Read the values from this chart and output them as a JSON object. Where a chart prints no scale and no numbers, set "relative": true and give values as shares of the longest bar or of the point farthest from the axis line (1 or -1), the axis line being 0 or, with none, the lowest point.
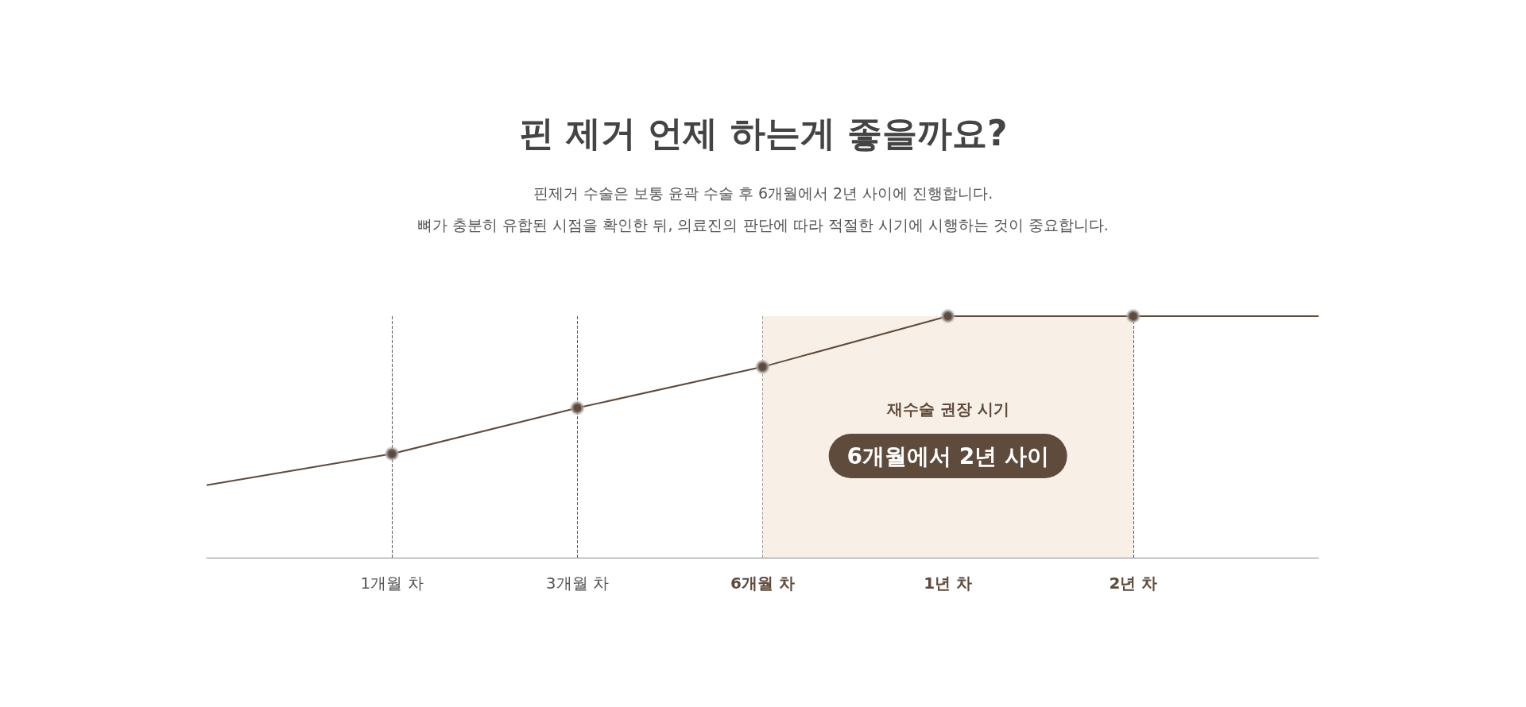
{
  "chart_data": {
    "type": "line",
    "title": "핀 제거 언제 하는게 좋을까요?",
    "subtitle": "핀제거 수술은 보통 윤곽 수술 후 6개월에서 2년 사이에 진행합니다.\n뼈가 충분히 유합된 시점을 확인한 뒤, 의료진의 판단에 따라 적절한 시기에 시행하는 것이 중요합니다.",
    "categories": [
      null,
      "1개월 차",
      "3개월 차",
      "6개월 차",
      "1년 차",
      "2년 차",
      null
    ],
    "relative": true,
    "series": [
      {
        "color": "#5e4b3c",
        "values": [
          0.3,
          0.43,
          0.62,
          0.79,
          1,
          1,
          1
        ]
      }
    ],
    "bands": [
      {
        "axis": "x",
        "from": "6개월 차",
        "to": "2년 차",
        "color": "#f8f0e6"
      }
    ],
    "annotations": [
      "재수술 권장 시기",
      "6개월에서 2년 사이"
    ],
    "marker": "circle",
    "grid": "x"
  }
}
